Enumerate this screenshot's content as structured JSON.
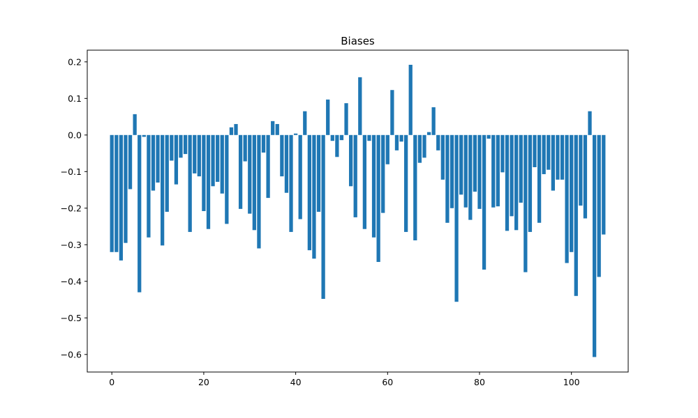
{
  "chart_data": {
    "type": "bar",
    "title": "Biases",
    "xlabel": "",
    "ylabel": "",
    "x": [
      0,
      1,
      2,
      3,
      4,
      5,
      6,
      7,
      8,
      9,
      10,
      11,
      12,
      13,
      14,
      15,
      16,
      17,
      18,
      19,
      20,
      21,
      22,
      23,
      24,
      25,
      26,
      27,
      28,
      29,
      30,
      31,
      32,
      33,
      34,
      35,
      36,
      37,
      38,
      39,
      40,
      41,
      42,
      43,
      44,
      45,
      46,
      47,
      48,
      49,
      50,
      51,
      52,
      53,
      54,
      55,
      56,
      57,
      58,
      59,
      60,
      61,
      62,
      63,
      64,
      65,
      66,
      67,
      68,
      69,
      70,
      71,
      72,
      73,
      74,
      75,
      76,
      77,
      78,
      79,
      80,
      81,
      82,
      83,
      84,
      85,
      86,
      87,
      88,
      89,
      90,
      91,
      92,
      93,
      94,
      95,
      96,
      97,
      98,
      99,
      100,
      101,
      102,
      103,
      104,
      105,
      106,
      107
    ],
    "values": [
      -0.32,
      -0.32,
      -0.343,
      -0.295,
      -0.148,
      0.057,
      -0.43,
      -0.005,
      -0.28,
      -0.152,
      -0.13,
      -0.302,
      -0.21,
      -0.07,
      -0.135,
      -0.062,
      -0.052,
      -0.265,
      -0.105,
      -0.113,
      -0.208,
      -0.257,
      -0.14,
      -0.128,
      -0.16,
      -0.243,
      0.021,
      0.03,
      -0.202,
      -0.072,
      -0.215,
      -0.26,
      -0.31,
      -0.048,
      -0.172,
      0.038,
      0.03,
      -0.113,
      -0.158,
      -0.265,
      0.004,
      -0.23,
      0.065,
      -0.315,
      -0.338,
      -0.21,
      -0.448,
      0.097,
      -0.016,
      -0.06,
      -0.014,
      0.087,
      -0.14,
      -0.225,
      0.158,
      -0.257,
      -0.016,
      -0.28,
      -0.347,
      -0.213,
      -0.08,
      0.123,
      -0.042,
      -0.018,
      -0.265,
      0.192,
      -0.288,
      -0.076,
      -0.062,
      0.008,
      0.076,
      -0.042,
      -0.122,
      -0.24,
      -0.2,
      -0.456,
      -0.163,
      -0.198,
      -0.232,
      -0.155,
      -0.202,
      -0.368,
      -0.01,
      -0.198,
      -0.195,
      -0.102,
      -0.262,
      -0.222,
      -0.26,
      -0.185,
      -0.375,
      -0.265,
      -0.088,
      -0.24,
      -0.107,
      -0.095,
      -0.152,
      -0.122,
      -0.122,
      -0.35,
      -0.32,
      -0.44,
      -0.193,
      -0.228,
      0.065,
      -0.607,
      -0.388,
      -0.272
    ],
    "xlim": [
      -5.35,
      112.35
    ],
    "ylim": [
      -0.648,
      0.232
    ],
    "xticks": [
      0,
      20,
      40,
      60,
      80,
      100
    ],
    "yticks": [
      0.2,
      0.1,
      0.0,
      -0.1,
      -0.2,
      -0.3,
      -0.4,
      -0.5,
      -0.6
    ],
    "ytick_labels": [
      "0.2",
      "0.1",
      "0.0",
      "−0.1",
      "−0.2",
      "−0.3",
      "−0.4",
      "−0.5",
      "−0.6"
    ],
    "bar_color": "#1f77b4",
    "grid": false,
    "legend": "none"
  }
}
